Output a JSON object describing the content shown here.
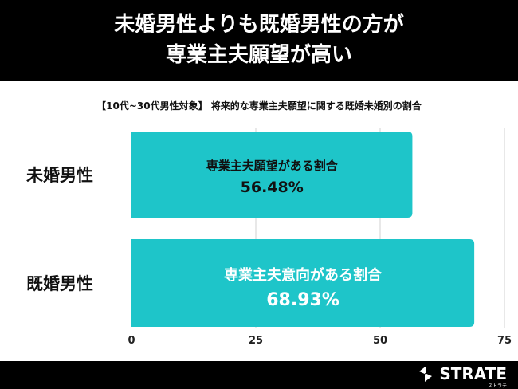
{
  "title_lines": [
    "未婚男性よりも既婚男性の方が",
    "専業主夫願望が高い"
  ],
  "subtitle": "【10代~30代男性対象】 将来的な専業主夫願望に関する既婚未婚別の割合",
  "logo": {
    "text": "STRATE",
    "sub": "ストラテ"
  },
  "colors": {
    "bar": "#1ec5c9",
    "grid": "#d0d0d0"
  },
  "chart_data": {
    "type": "bar",
    "orientation": "horizontal",
    "categories": [
      "未婚男性",
      "既婚男性"
    ],
    "values": [
      56.48,
      68.93
    ],
    "bar_labels": [
      "専業主夫願望がある割合",
      "専業主夫意向がある割合"
    ],
    "value_labels": [
      "56.48%",
      "68.93%"
    ],
    "xlim": [
      0,
      75
    ],
    "xticks": [
      "0",
      "25",
      "50",
      "75"
    ],
    "grid": true
  }
}
